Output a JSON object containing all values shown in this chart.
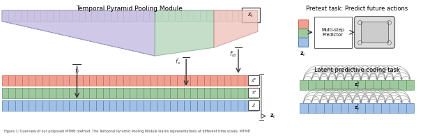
{
  "title_tpp": "Temporal Pyramid Pooling Module",
  "title_pretext": "Pretext task: Predict future actions",
  "title_latent": "Latent predictive coding task",
  "caption": "Figure 1: Overview of our proposed MTMB method. The Temporal Pyramid Pooling Module learns representations at different time scales, MTMB",
  "colors": {
    "gray_cell_face": "#E8E8E8",
    "gray_cell_edge": "#AAAAAA",
    "red_face": "#F0A090",
    "red_edge": "#CC6655",
    "green_face": "#A0C8A0",
    "green_edge": "#5A9A5A",
    "blue_face": "#A0C0E8",
    "blue_edge": "#5580AA",
    "purple_trap": "#C0B8E0",
    "purple_trap_edge": "#9090BB",
    "green_trap": "#B0D4B8",
    "green_trap_edge": "#80A880",
    "pink_trap": "#F0C0B8",
    "pink_trap_edge": "#C08888",
    "arrow_color": "#333333",
    "white": "#FFFFFF",
    "box_edge": "#666666"
  }
}
